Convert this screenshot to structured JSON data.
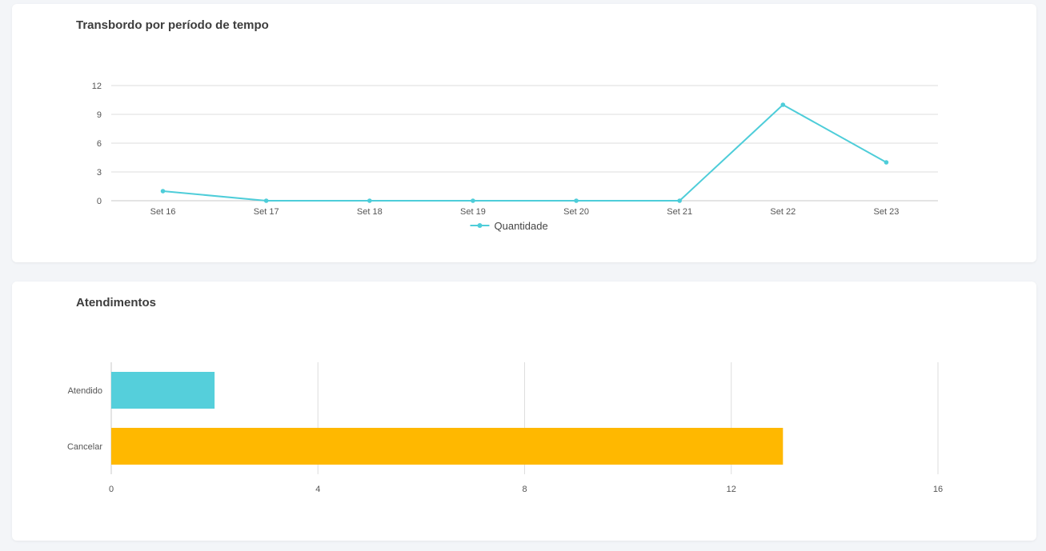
{
  "chart_data": [
    {
      "type": "line",
      "title": "Transbordo por período de tempo",
      "categories": [
        "Set 16",
        "Set 17",
        "Set 18",
        "Set 19",
        "Set 20",
        "Set 21",
        "Set 22",
        "Set 23"
      ],
      "series": [
        {
          "name": "Quantidade",
          "values": [
            1,
            0,
            0,
            0,
            0,
            0,
            10,
            4
          ],
          "color": "#4ecdd9"
        }
      ],
      "yticks": [
        0,
        3,
        6,
        9,
        12
      ],
      "ylim": [
        0,
        12
      ],
      "grid": true,
      "legend": "bottom-center"
    },
    {
      "type": "bar",
      "orientation": "horizontal",
      "title": "Atendimentos",
      "categories": [
        "Atendido",
        "Cancelar"
      ],
      "values": [
        2,
        13
      ],
      "colors": [
        "#55cfdb",
        "#ffb800"
      ],
      "xticks": [
        0,
        4,
        8,
        12,
        16
      ],
      "xlim": [
        0,
        16
      ],
      "grid": true
    }
  ]
}
